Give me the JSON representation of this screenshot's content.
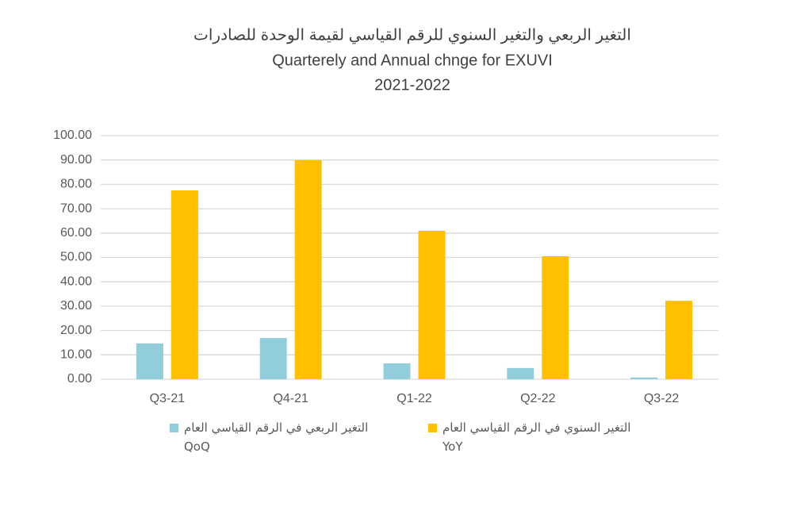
{
  "chart_data": {
    "type": "bar",
    "title": [
      "التغير الربعي والتغير السنوي للرقم القياسي لقيمة الوحدة للصادرات",
      "Quarterely and Annual chnge for EXUVI",
      "2021-2022"
    ],
    "categories": [
      "Q3-21",
      "Q4-21",
      "Q1-22",
      "Q2-22",
      "Q3-22"
    ],
    "series": [
      {
        "name": "التغير الربعي  في الرقم القياسي العام\nQoQ",
        "color": "#92cddc",
        "values": [
          14.7,
          16.9,
          6.5,
          4.6,
          0.7
        ]
      },
      {
        "name": "التغير السنوي في الرقم القياسي العام\nYoY",
        "color": "#ffc000",
        "values": [
          77.5,
          89.9,
          60.9,
          50.5,
          32.2
        ]
      }
    ],
    "ylim": [
      0,
      100
    ],
    "yticks": [
      {
        "value": 0,
        "label": "0.00"
      },
      {
        "value": 10,
        "label": "10.00"
      },
      {
        "value": 20,
        "label": "20.00"
      },
      {
        "value": 30,
        "label": "30.00"
      },
      {
        "value": 40,
        "label": "40.00"
      },
      {
        "value": 50,
        "label": "50.00"
      },
      {
        "value": 60,
        "label": "60.00"
      },
      {
        "value": 70,
        "label": "70.00"
      },
      {
        "value": 80,
        "label": "80.00"
      },
      {
        "value": 90,
        "label": "90.00"
      },
      {
        "value": 100,
        "label": "100.00"
      }
    ],
    "grid": true,
    "legend": "bottom"
  }
}
